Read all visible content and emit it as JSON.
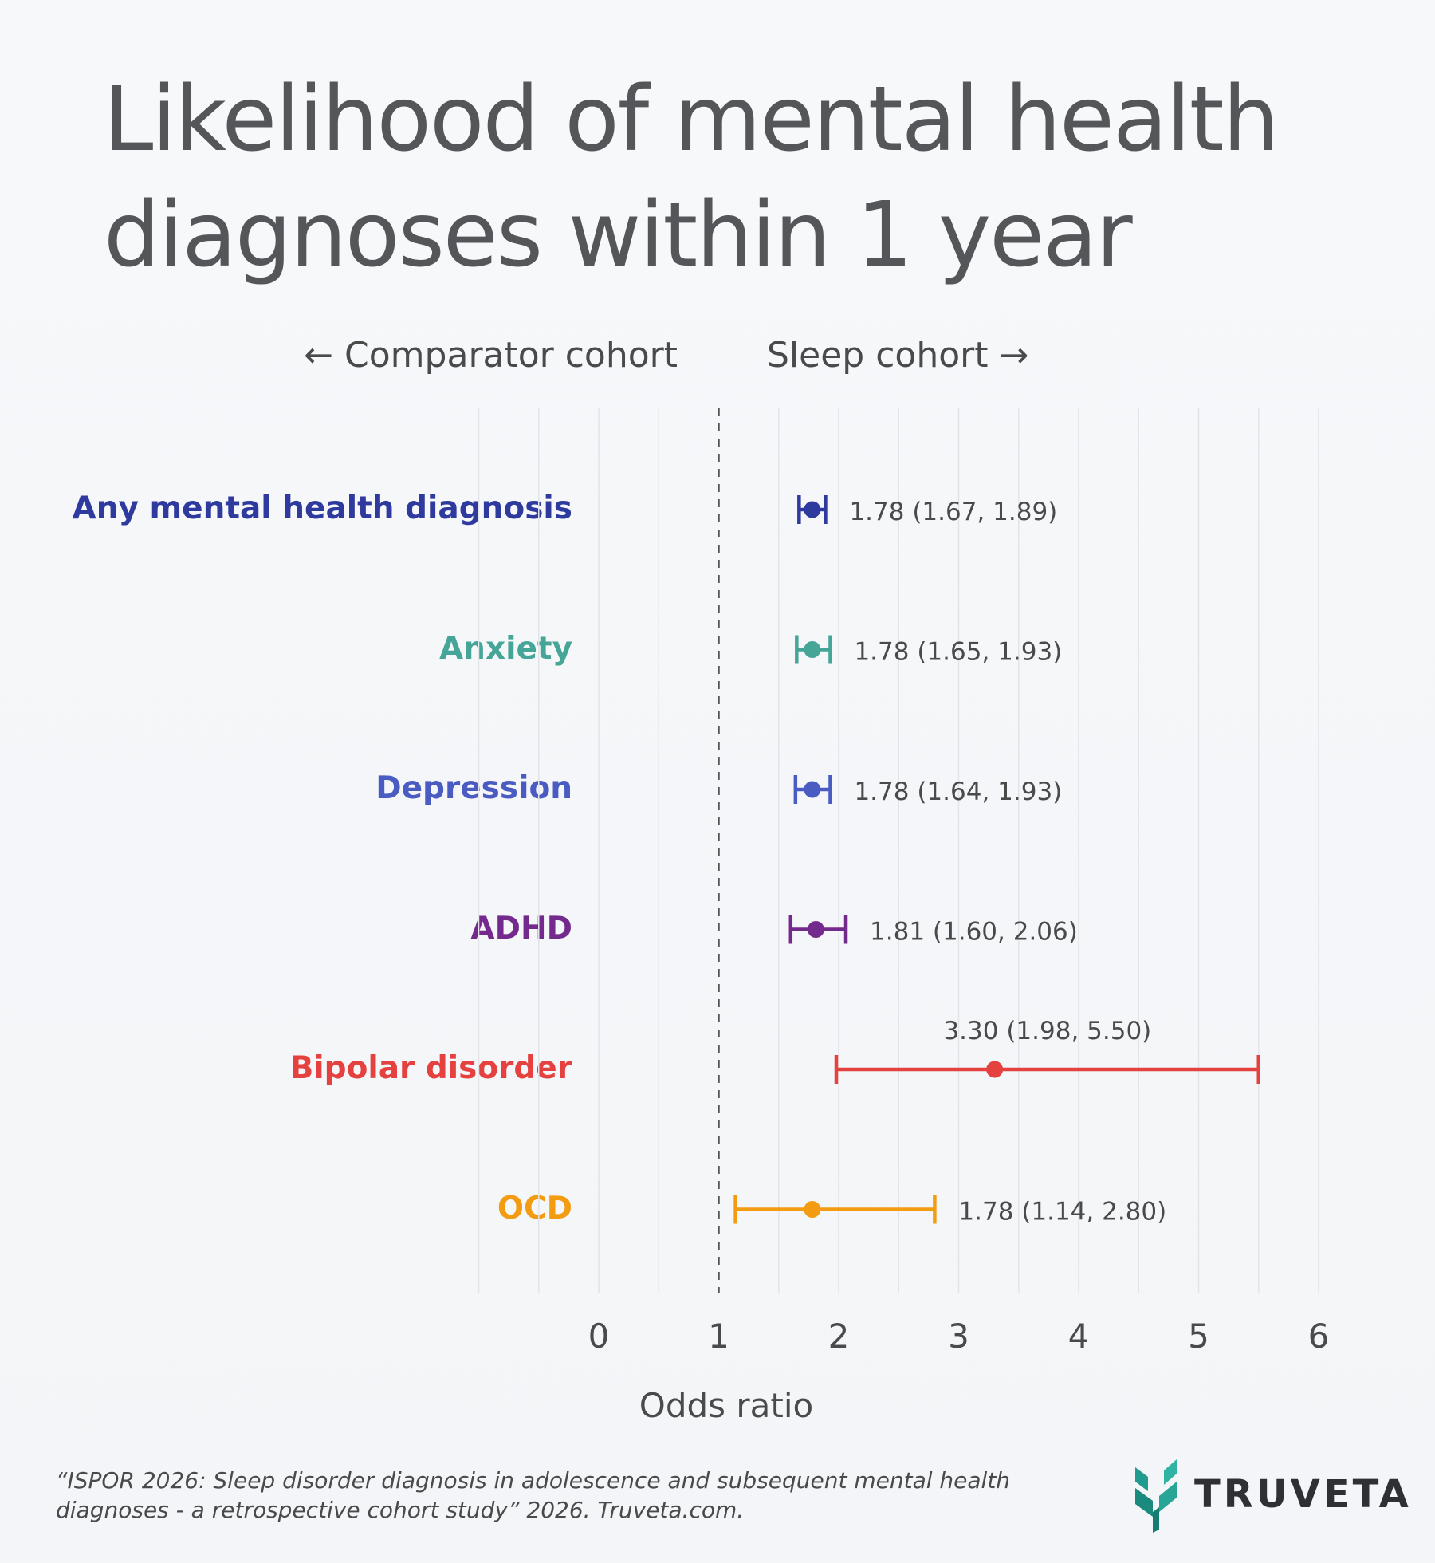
{
  "title": "Likelihood of mental health diagnoses within 1 year",
  "direction_left": "← Comparator cohort",
  "direction_right": "Sleep cohort →",
  "citation": "“ISPOR 2026: Sleep disorder diagnosis in adolescence and subsequent mental health diagnoses - a retrospective cohort study” 2026. Truveta.com.",
  "brand": "TRUVETA",
  "colors": {
    "brand_teal": "#1f9c8f",
    "grid": "#e3e4e7",
    "reference_line": "#555555"
  },
  "chart_data": {
    "type": "scatter",
    "subtype": "forest-plot",
    "xlabel": "Odds ratio",
    "xlim": [
      -1,
      6
    ],
    "x_ticks": [
      0,
      1,
      2,
      3,
      4,
      5,
      6
    ],
    "reference_line": 1,
    "grid": true,
    "series": [
      {
        "name": "Any mental health diagnosis",
        "or": 1.78,
        "lo": 1.67,
        "hi": 1.89,
        "label": "1.78 (1.67, 1.89)",
        "color": "#2f3a9e"
      },
      {
        "name": "Anxiety",
        "or": 1.78,
        "lo": 1.65,
        "hi": 1.93,
        "label": "1.78 (1.65, 1.93)",
        "color": "#45a596"
      },
      {
        "name": "Depression",
        "or": 1.78,
        "lo": 1.64,
        "hi": 1.93,
        "label": "1.78 (1.64, 1.93)",
        "color": "#4a5cc2"
      },
      {
        "name": "ADHD",
        "or": 1.81,
        "lo": 1.6,
        "hi": 2.06,
        "label": "1.81 (1.60, 2.06)",
        "color": "#74298c"
      },
      {
        "name": "Bipolar disorder",
        "or": 3.3,
        "lo": 1.98,
        "hi": 5.5,
        "label": "3.30 (1.98, 5.50)",
        "color": "#e5413e"
      },
      {
        "name": "OCD",
        "or": 1.78,
        "lo": 1.14,
        "hi": 2.8,
        "label": "1.78 (1.14, 2.80)",
        "color": "#f39c12"
      }
    ]
  }
}
